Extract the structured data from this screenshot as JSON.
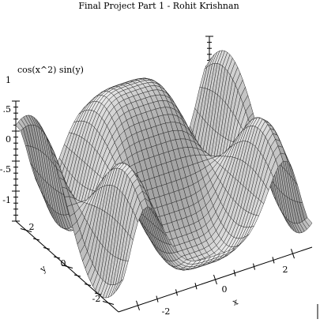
{
  "chart_data": {
    "type": "surface3d",
    "title": "Final Project Part 1 - Rohit Krishnan",
    "function_label": "cos(x^2) sin(y)",
    "xlabel": "x",
    "ylabel": "y",
    "zlabel": "",
    "xlim": [
      -2.5,
      2.5
    ],
    "ylim": [
      -2.5,
      2.5
    ],
    "zlim": [
      -1,
      1
    ],
    "x_ticks": [
      "-2",
      "0",
      "2"
    ],
    "y_ticks": [
      "-2",
      "0",
      "2"
    ],
    "z_ticks": [
      "1",
      ".5",
      "0",
      "-.5",
      "-1"
    ],
    "grid_samples": 40
  }
}
